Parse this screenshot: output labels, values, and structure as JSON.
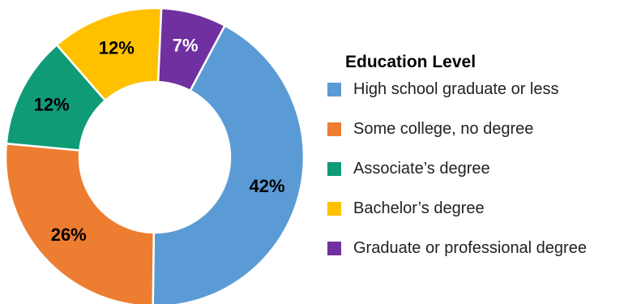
{
  "chart_data": {
    "type": "pie",
    "variant": "donut",
    "title": "",
    "legend_title": "Education Level",
    "legend_position": "right",
    "slices": [
      {
        "name": "High school graduate or less",
        "value": 42,
        "label": "42%",
        "color": "#5B9BD5",
        "label_color": "#000000"
      },
      {
        "name": "Some college, no degree",
        "value": 26,
        "label": "26%",
        "color": "#ED7D31",
        "label_color": "#000000"
      },
      {
        "name": "Associate’s degree",
        "value": 12,
        "label": "12%",
        "color": "#109B77",
        "label_color": "#000000"
      },
      {
        "name": "Bachelor’s degree",
        "value": 12,
        "label": "12%",
        "color": "#FFC000",
        "label_color": "#000000"
      },
      {
        "name": "Graduate or professional degree",
        "value": 7,
        "label": "7%",
        "color": "#7030A0",
        "label_color": "#ffffff"
      }
    ]
  }
}
